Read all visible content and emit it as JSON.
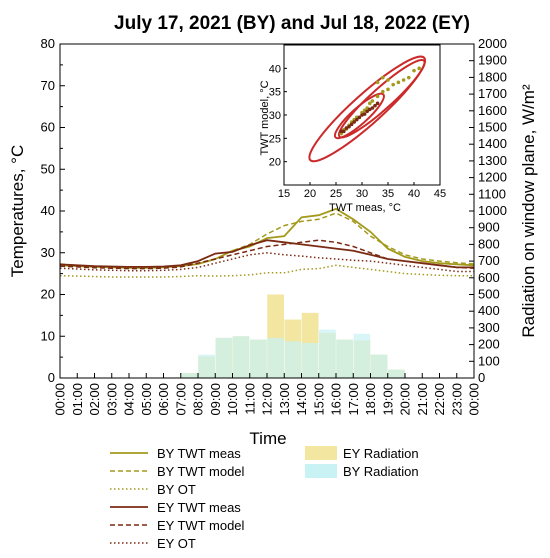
{
  "chart_data": [
    {
      "type": "line",
      "title": "July 17, 2021 (BY) and Jul 18, 2022 (EY)",
      "xlabel": "Time",
      "ylabel": "Temperatures, °C",
      "y2label": "Radiation on window plane, W/m²",
      "xlim": [
        0,
        24
      ],
      "ylim": [
        0,
        80
      ],
      "y2lim": [
        0,
        2000
      ],
      "x_ticks": [
        "00:00",
        "01:00",
        "02:00",
        "03:00",
        "04:00",
        "05:00",
        "06:00",
        "07:00",
        "08:00",
        "09:00",
        "10:00",
        "11:00",
        "12:00",
        "13:00",
        "14:00",
        "15:00",
        "16:00",
        "17:00",
        "18:00",
        "19:00",
        "20:00",
        "21:00",
        "22:00",
        "23:00",
        "00:00"
      ],
      "y_ticks": [
        0,
        10,
        20,
        30,
        40,
        50,
        60,
        70,
        80
      ],
      "y2_ticks": [
        0,
        100,
        200,
        300,
        400,
        500,
        600,
        700,
        800,
        900,
        1000,
        1100,
        1200,
        1300,
        1400,
        1500,
        1600,
        1700,
        1800,
        1900,
        2000
      ],
      "x": [
        0,
        1,
        2,
        3,
        4,
        5,
        6,
        7,
        8,
        9,
        10,
        11,
        12,
        13,
        14,
        15,
        16,
        17,
        18,
        19,
        20,
        21,
        22,
        23,
        24
      ],
      "series": [
        {
          "name": "BY TWT meas",
          "color": "#a39a1c",
          "dash": "solid",
          "values": [
            27,
            26.8,
            26.6,
            26.5,
            26.4,
            26.4,
            26.5,
            26.8,
            27.3,
            28.5,
            30.5,
            31.5,
            33.5,
            34,
            38.5,
            39,
            40.5,
            38,
            35,
            31,
            29,
            28,
            27.5,
            27.2,
            27
          ]
        },
        {
          "name": "BY TWT model",
          "color": "#a39a1c",
          "dash": "dashed",
          "values": [
            27.3,
            27,
            26.8,
            26.6,
            26.5,
            26.5,
            26.6,
            26.9,
            27.5,
            28.5,
            30.5,
            32,
            34.5,
            36.5,
            37.5,
            38,
            39.5,
            37.5,
            34,
            31.5,
            29.5,
            28.5,
            28,
            27.6,
            27.3
          ]
        },
        {
          "name": "BY OT",
          "color": "#a39a1c",
          "dash": "dotted",
          "values": [
            24.5,
            24.4,
            24.3,
            24.2,
            24.2,
            24.2,
            24.2,
            24.3,
            24.5,
            24.4,
            24.5,
            24.7,
            25.2,
            25.2,
            26,
            26.2,
            27,
            26.5,
            26,
            25.5,
            25,
            24.8,
            24.6,
            24.5,
            24.5
          ]
        },
        {
          "name": "EY TWT meas",
          "color": "#7a2a12",
          "dash": "solid",
          "values": [
            27.2,
            27,
            26.8,
            26.7,
            26.6,
            26.6,
            26.7,
            27,
            28,
            29.8,
            30.2,
            31.8,
            33,
            32.5,
            32,
            31.5,
            31,
            30.5,
            29.5,
            28.5,
            28,
            27.5,
            27,
            26.5,
            26.5
          ]
        },
        {
          "name": "EY TWT model",
          "color": "#7a2a12",
          "dash": "dashed",
          "values": [
            26.8,
            26.6,
            26.4,
            26.3,
            26.2,
            26.2,
            26.3,
            26.6,
            27.5,
            28.5,
            29.5,
            30.5,
            31.5,
            32,
            32.5,
            33,
            32.5,
            31.5,
            30,
            28.5,
            28,
            27.5,
            27,
            26.5,
            26.3
          ]
        },
        {
          "name": "EY OT",
          "color": "#7a2a12",
          "dash": "dotted",
          "values": [
            26.3,
            26.1,
            25.9,
            25.8,
            25.7,
            25.7,
            25.8,
            26,
            26.5,
            27.5,
            28.5,
            29.5,
            30,
            29.5,
            29.2,
            28.8,
            28.5,
            28.2,
            28,
            27.5,
            27,
            26.5,
            26,
            25.5,
            25.5
          ]
        }
      ],
      "bars": [
        {
          "name": "EY Radiation",
          "color": "#f2e6a0",
          "axis": "y2",
          "x": [
            7,
            8,
            9,
            10,
            11,
            12,
            13,
            14,
            15,
            16,
            17,
            18,
            19
          ],
          "values": [
            30,
            130,
            240,
            250,
            230,
            500,
            350,
            390,
            270,
            230,
            225,
            140,
            50
          ]
        },
        {
          "name": "BY Radiation",
          "color": "#c9f2f5",
          "axis": "y2",
          "x": [
            7,
            8,
            9,
            10,
            11,
            12,
            13,
            14,
            15,
            16,
            17,
            18,
            19
          ],
          "values": [
            30,
            140,
            240,
            250,
            230,
            240,
            220,
            210,
            290,
            230,
            265,
            140,
            50
          ]
        }
      ],
      "legend": [
        "BY TWT meas",
        "BY TWT model",
        "BY OT",
        "EY TWT meas",
        "EY TWT model",
        "EY OT",
        "EY Radiation",
        "BY Radiation"
      ],
      "legend_position": "bottom"
    },
    {
      "type": "scatter",
      "xlabel": "TWT meas, °C",
      "ylabel": "TWT model, °C",
      "xlim": [
        15,
        45
      ],
      "ylim": [
        15,
        45
      ],
      "x_ticks": [
        15,
        20,
        25,
        30,
        35,
        40,
        45
      ],
      "y_ticks": [
        20,
        25,
        30,
        35,
        40
      ],
      "ellipse_color": "#cc2a2a",
      "series": [
        {
          "name": "BY",
          "color": "#a39a1c",
          "points": [
            [
              26,
              26
            ],
            [
              26.5,
              26.8
            ],
            [
              27,
              27
            ],
            [
              27.5,
              27.8
            ],
            [
              28,
              28.5
            ],
            [
              28.5,
              29
            ],
            [
              29,
              29.5
            ],
            [
              30,
              30.5
            ],
            [
              30.5,
              31
            ],
            [
              31,
              31.5
            ],
            [
              31.5,
              32.5
            ],
            [
              32,
              33
            ],
            [
              33,
              34
            ],
            [
              34,
              35
            ],
            [
              35,
              35.5
            ],
            [
              36,
              36.5
            ],
            [
              37,
              37
            ],
            [
              38,
              37.5
            ],
            [
              39,
              38
            ],
            [
              40,
              39.5
            ],
            [
              41,
              40
            ],
            [
              33,
              37
            ],
            [
              34,
              38
            ],
            [
              35,
              37.5
            ]
          ]
        },
        {
          "name": "EY",
          "color": "#7a2a12",
          "points": [
            [
              26,
              26.5
            ],
            [
              26.5,
              26.5
            ],
            [
              27,
              27.2
            ],
            [
              27.5,
              27.5
            ],
            [
              28,
              28
            ],
            [
              28.5,
              28.5
            ],
            [
              29,
              29
            ],
            [
              29.5,
              29.5
            ],
            [
              30,
              30
            ],
            [
              30.5,
              30.2
            ],
            [
              31,
              30.8
            ],
            [
              31.5,
              31.2
            ],
            [
              32,
              31.5
            ],
            [
              32.5,
              32
            ],
            [
              33,
              32.5
            ]
          ]
        }
      ]
    }
  ]
}
